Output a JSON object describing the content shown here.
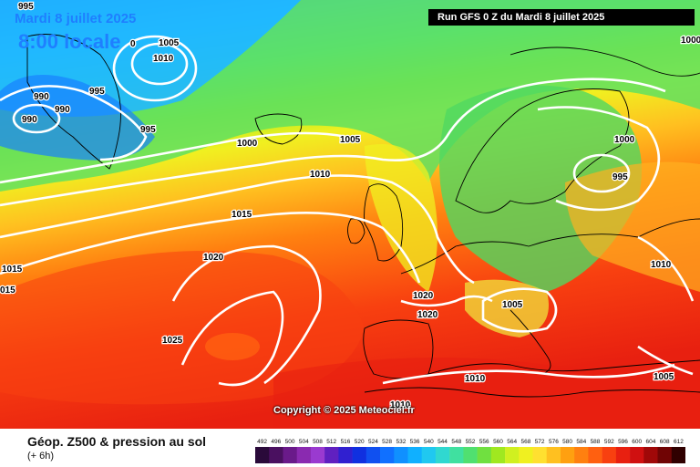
{
  "header": {
    "date_title": "Mardi 8 juillet 2025",
    "time_title": "8:00 locale",
    "run_label": "Run GFS 0 Z du Mardi 8 juillet 2025"
  },
  "copyright": "Copyright © 2025 Meteociel.fr",
  "legend": {
    "title": "Géop. Z500 & pression au sol",
    "subtitle": "(+ 6h)",
    "scale_labels": [
      "492",
      "496",
      "500",
      "504",
      "508",
      "512",
      "516",
      "520",
      "524",
      "528",
      "532",
      "536",
      "540",
      "544",
      "548",
      "552",
      "556",
      "560",
      "564",
      "568",
      "572",
      "576",
      "580",
      "584",
      "588",
      "592",
      "596",
      "600",
      "604",
      "608",
      "612"
    ],
    "scale_colors": [
      "#2a0a3a",
      "#4a1060",
      "#6a1a8a",
      "#8a2ab0",
      "#9a3ad0",
      "#6020c0",
      "#3020d0",
      "#1030e0",
      "#1050f0",
      "#1070ff",
      "#1090ff",
      "#10b0ff",
      "#20c8f0",
      "#30d8d0",
      "#40e0a0",
      "#50e070",
      "#70e040",
      "#a0e820",
      "#d0f020",
      "#f0f020",
      "#ffe030",
      "#ffc020",
      "#ffa010",
      "#ff8010",
      "#ff6010",
      "#f84010",
      "#e82010",
      "#d01010",
      "#a00808",
      "#700404",
      "#300000"
    ]
  },
  "isobars": {
    "labels": [
      {
        "text": "995"
      },
      {
        "text": "1005"
      },
      {
        "text": "1010"
      },
      {
        "text": "990"
      },
      {
        "text": "990"
      },
      {
        "text": "995"
      },
      {
        "text": "990"
      },
      {
        "text": "995"
      },
      {
        "text": "1000"
      },
      {
        "text": "1005"
      },
      {
        "text": "1010"
      },
      {
        "text": "1015"
      },
      {
        "text": "1020"
      },
      {
        "text": "1015"
      },
      {
        "text": "015"
      },
      {
        "text": "1025"
      },
      {
        "text": "1020"
      },
      {
        "text": "1020"
      },
      {
        "text": "1005"
      },
      {
        "text": "1000"
      },
      {
        "text": "995"
      },
      {
        "text": "1010"
      },
      {
        "text": "1010"
      },
      {
        "text": "1005"
      },
      {
        "text": "1010"
      },
      {
        "text": "1000"
      },
      {
        "text": "0"
      }
    ]
  }
}
